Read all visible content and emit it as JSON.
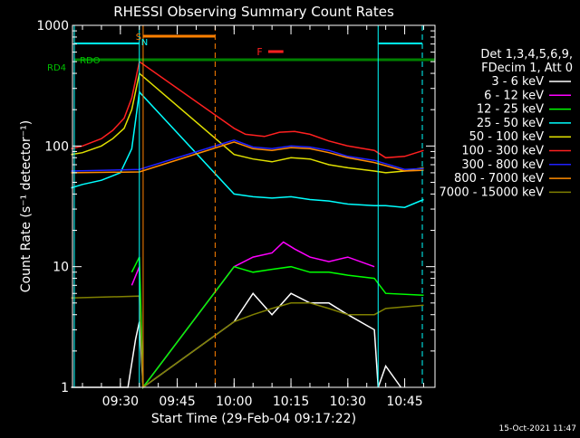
{
  "chart_data": {
    "type": "line",
    "title": "RHESSI Observing Summary Count Rates",
    "xlabel": "Start Time (29-Feb-04 09:17:22)",
    "ylabel": "Count Rate (s⁻¹ detector⁻¹)",
    "y_scale": "log",
    "ylim": [
      1,
      1000
    ],
    "y_ticks": [
      1,
      10,
      100,
      1000
    ],
    "y_tick_labels": [
      "1",
      "10",
      "100",
      "1000"
    ],
    "xlim": [
      "09:17:22",
      "10:53:00"
    ],
    "x_ticks": [
      "09:30",
      "09:45",
      "10:00",
      "10:15",
      "10:30",
      "10:45"
    ],
    "legend_header": [
      "Det 1,3,4,5,6,9,",
      "FDecim 1, Att 0"
    ],
    "series": [
      {
        "name": "3 - 6 keV",
        "color": "#ffffff",
        "x": [
          "09:17",
          "09:32",
          "09:34",
          "09:35",
          "09:36",
          "10:00",
          "10:05",
          "10:10",
          "10:15",
          "10:20",
          "10:25",
          "10:30",
          "10:37",
          "10:38",
          "10:40",
          "10:44"
        ],
        "y": [
          1,
          1,
          2.5,
          3.5,
          1,
          3.5,
          6,
          4,
          6,
          5,
          5,
          4,
          3,
          1,
          1.5,
          1
        ]
      },
      {
        "name": "6 - 12 keV",
        "color": "#ff00ff",
        "x": [
          "09:33",
          "09:35",
          "09:36",
          "10:00",
          "10:05",
          "10:10",
          "10:13",
          "10:16",
          "10:20",
          "10:25",
          "10:30",
          "10:37"
        ],
        "y": [
          7,
          10,
          1,
          10,
          12,
          13,
          16,
          14,
          12,
          11,
          12,
          10
        ]
      },
      {
        "name": "12 - 25 keV",
        "color": "#00ff00",
        "x": [
          "09:33",
          "09:35",
          "09:36",
          "10:00",
          "10:05",
          "10:10",
          "10:15",
          "10:20",
          "10:25",
          "10:30",
          "10:37",
          "10:40",
          "10:50"
        ],
        "y": [
          9,
          12,
          1,
          10,
          9,
          9.5,
          10,
          9,
          9,
          8.5,
          8,
          6,
          5.8
        ]
      },
      {
        "name": "25 - 50 keV",
        "color": "#00ffff",
        "x": [
          "09:17",
          "09:20",
          "09:25",
          "09:30",
          "09:33",
          "09:35",
          "10:00",
          "10:05",
          "10:10",
          "10:15",
          "10:20",
          "10:25",
          "10:30",
          "10:37",
          "10:40",
          "10:45",
          "10:50"
        ],
        "y": [
          45,
          48,
          52,
          60,
          95,
          280,
          40,
          38,
          37,
          38,
          36,
          35,
          33,
          32,
          32,
          31,
          36
        ]
      },
      {
        "name": "50 - 100 keV",
        "color": "#e0e000",
        "x": [
          "09:17",
          "09:20",
          "09:25",
          "09:28",
          "09:31",
          "09:33",
          "09:35",
          "10:00",
          "10:05",
          "10:10",
          "10:15",
          "10:20",
          "10:25",
          "10:30",
          "10:37",
          "10:40",
          "10:45",
          "10:50"
        ],
        "y": [
          85,
          88,
          100,
          115,
          140,
          200,
          400,
          85,
          78,
          74,
          80,
          78,
          70,
          66,
          62,
          60,
          62,
          66
        ]
      },
      {
        "name": "100 - 300 keV",
        "color": "#ff2020",
        "x": [
          "09:17",
          "09:20",
          "09:25",
          "09:28",
          "09:31",
          "09:33",
          "09:35",
          "10:00",
          "10:03",
          "10:08",
          "10:12",
          "10:16",
          "10:20",
          "10:25",
          "10:30",
          "10:37",
          "10:40",
          "10:45",
          "10:50"
        ],
        "y": [
          95,
          100,
          115,
          135,
          170,
          250,
          500,
          140,
          125,
          120,
          130,
          132,
          125,
          110,
          100,
          92,
          80,
          82,
          92
        ]
      },
      {
        "name": "300 - 800 keV",
        "color": "#2020ff",
        "x": [
          "09:17",
          "09:35",
          "10:00",
          "10:05",
          "10:10",
          "10:15",
          "10:20",
          "10:25",
          "10:30",
          "10:37",
          "10:45",
          "10:50"
        ],
        "y": [
          62,
          64,
          112,
          98,
          95,
          100,
          98,
          92,
          82,
          76,
          64,
          65
        ]
      },
      {
        "name": "800 - 7000 keV",
        "color": "#ff8c00",
        "x": [
          "09:17",
          "09:35",
          "10:00",
          "10:05",
          "10:10",
          "10:15",
          "10:20",
          "10:25",
          "10:30",
          "10:37",
          "10:45",
          "10:50"
        ],
        "y": [
          60,
          61,
          108,
          95,
          92,
          97,
          95,
          88,
          80,
          73,
          62,
          63
        ]
      },
      {
        "name": "7000 - 15000 keV",
        "color": "#808000",
        "x": [
          "09:17",
          "09:35",
          "09:36",
          "10:00",
          "10:05",
          "10:10",
          "10:15",
          "10:20",
          "10:25",
          "10:30",
          "10:37",
          "10:40",
          "10:50"
        ],
        "y": [
          5.5,
          5.7,
          1,
          3.5,
          4,
          4.5,
          5,
          5,
          4.5,
          4,
          4,
          4.5,
          4.8
        ]
      }
    ],
    "annotations": {
      "rd4_label": "RD4",
      "rdo_label": "RDO",
      "s_label": "S",
      "n_label": "N",
      "f_label": "F"
    },
    "footer_date": "15-Oct-2021 11:47"
  }
}
